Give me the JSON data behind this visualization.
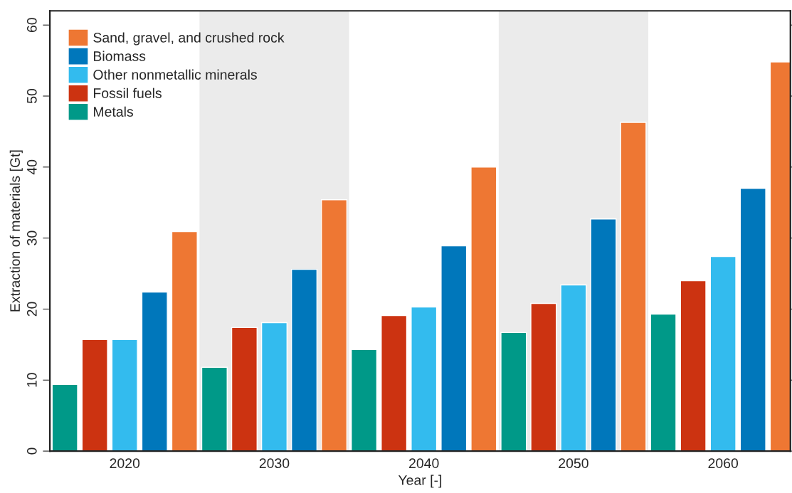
{
  "chart_data": {
    "type": "bar",
    "xlabel": "Year [-]",
    "ylabel": "Extraction of materials [Gt]",
    "x": [
      2020,
      2030,
      2040,
      2050,
      2060
    ],
    "series": [
      {
        "name": "Sand, gravel, and crushed rock",
        "color": "#ee7733",
        "values": [
          30.9,
          35.4,
          40.0,
          46.3,
          54.8
        ]
      },
      {
        "name": "Biomass",
        "color": "#0077bb",
        "values": [
          22.4,
          25.6,
          28.9,
          32.7,
          37.0
        ]
      },
      {
        "name": "Other nonmetallic minerals",
        "color": "#33bbee",
        "values": [
          15.7,
          18.1,
          20.3,
          23.4,
          27.4
        ]
      },
      {
        "name": "Fossil fuels",
        "color": "#cc3311",
        "values": [
          15.7,
          17.4,
          19.1,
          20.8,
          24.0
        ]
      },
      {
        "name": "Metals",
        "color": "#009988",
        "values": [
          9.4,
          11.8,
          14.3,
          16.7,
          19.3
        ]
      }
    ],
    "xlim": [
      2015,
      2064.5
    ],
    "ylim": [
      0,
      62
    ],
    "xticks": [
      2020,
      2030,
      2040,
      2050,
      2060
    ],
    "yticks": [
      0,
      10,
      20,
      30,
      40,
      50,
      60
    ],
    "bands": [
      {
        "axis": "x",
        "from": 2025,
        "to": 2035,
        "color": "#ebebeb"
      },
      {
        "axis": "x",
        "from": 2045,
        "to": 2055,
        "color": "#ebebeb"
      }
    ],
    "legend": "top left",
    "grid": false
  }
}
